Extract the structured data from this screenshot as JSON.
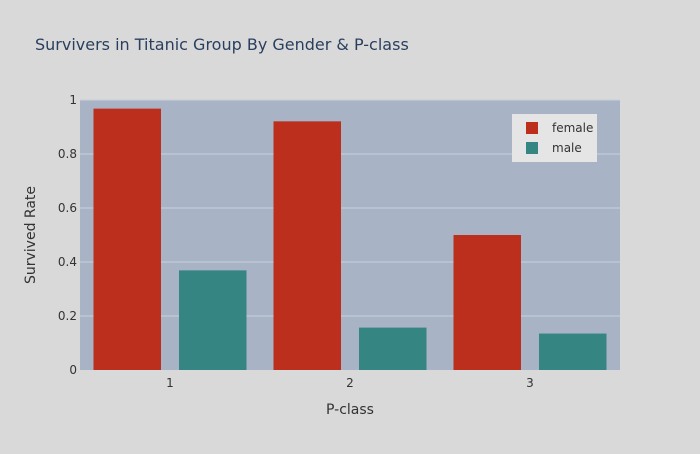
{
  "chart_data": {
    "type": "bar",
    "title": "Survivers in Titanic Group By Gender & P-class",
    "xlabel": "P-class",
    "ylabel": "Survived Rate",
    "categories": [
      "1",
      "2",
      "3"
    ],
    "series": [
      {
        "name": "female",
        "values": [
          0.968,
          0.921,
          0.5
        ],
        "color": "#bc2f1d"
      },
      {
        "name": "male",
        "values": [
          0.369,
          0.157,
          0.135
        ],
        "color": "#358583"
      }
    ],
    "ylim": [
      0,
      1
    ],
    "yticks": [
      0,
      0.2,
      0.4,
      0.6,
      0.8,
      1
    ],
    "ytick_labels": [
      "0",
      "0.2",
      "0.4",
      "0.6",
      "0.8",
      "1"
    ],
    "grid": true,
    "legend_position": "top-right",
    "colors": {
      "plot_bg": "#a8b3c5",
      "paper_bg": "#d9d9d9",
      "grid": "#c9d0da"
    }
  }
}
